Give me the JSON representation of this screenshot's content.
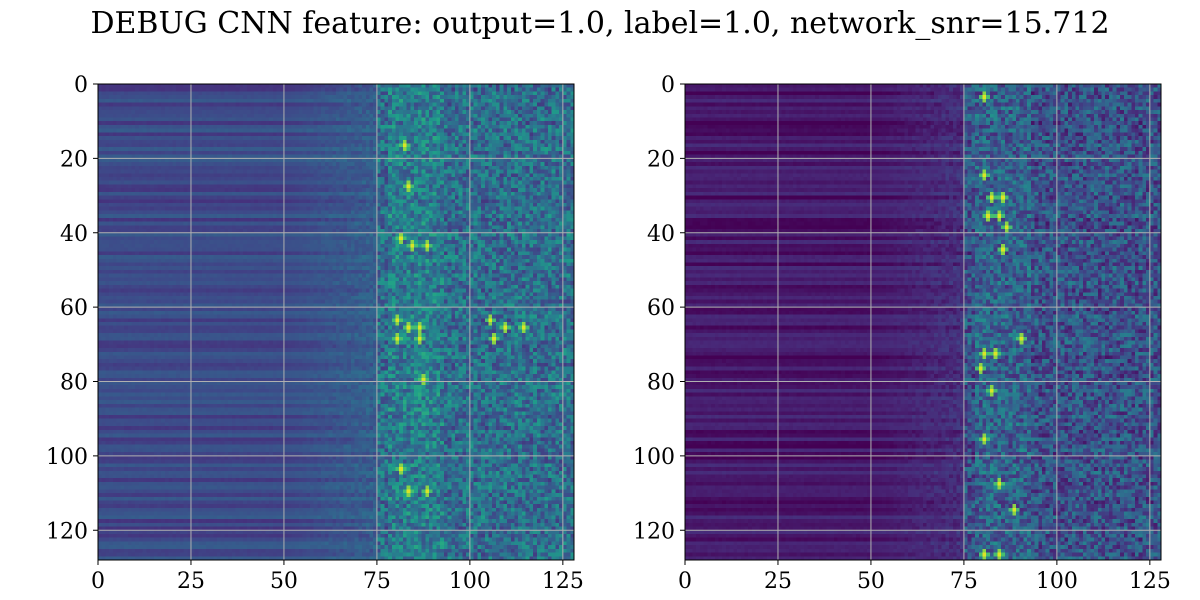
{
  "title": "DEBUG CNN feature: output=1.0, label=1.0, network_snr=15.712",
  "colormap": [
    "#440154",
    "#482878",
    "#3e4989",
    "#31688e",
    "#26828e",
    "#1f9e89",
    "#35b779",
    "#6ece58",
    "#b5de2b",
    "#fde725"
  ],
  "chart_data": [
    {
      "type": "heatmap",
      "panel": "left",
      "title": "",
      "xlabel": "",
      "ylabel": "",
      "xlim": [
        0,
        128
      ],
      "ylim": [
        128,
        0
      ],
      "xticks": [
        0,
        25,
        50,
        75,
        100,
        125
      ],
      "yticks": [
        0,
        20,
        40,
        60,
        80,
        100,
        120
      ],
      "grid": true,
      "rows": 128,
      "cols": 128,
      "colormap": "viridis",
      "description_profile": {
        "cols_0_50": "low, horizontally striped (blue-purple)",
        "cols_50_75": "gradual increase, noisy",
        "cols_75_128": "high-variance speckle with bright spots"
      },
      "bright_spots": [
        {
          "x": 82,
          "y": 16
        },
        {
          "x": 83,
          "y": 27
        },
        {
          "x": 81,
          "y": 41
        },
        {
          "x": 84,
          "y": 43
        },
        {
          "x": 88,
          "y": 43
        },
        {
          "x": 80,
          "y": 63
        },
        {
          "x": 83,
          "y": 65
        },
        {
          "x": 86,
          "y": 65
        },
        {
          "x": 105,
          "y": 63
        },
        {
          "x": 109,
          "y": 65
        },
        {
          "x": 114,
          "y": 65
        },
        {
          "x": 106,
          "y": 68
        },
        {
          "x": 80,
          "y": 68
        },
        {
          "x": 86,
          "y": 68
        },
        {
          "x": 87,
          "y": 79
        },
        {
          "x": 81,
          "y": 103
        },
        {
          "x": 83,
          "y": 109
        },
        {
          "x": 88,
          "y": 109
        }
      ]
    },
    {
      "type": "heatmap",
      "panel": "right",
      "title": "",
      "xlabel": "",
      "ylabel": "",
      "xlim": [
        0,
        128
      ],
      "ylim": [
        128,
        0
      ],
      "xticks": [
        0,
        25,
        50,
        75,
        100,
        125
      ],
      "yticks": [
        0,
        20,
        40,
        60,
        80,
        100,
        120
      ],
      "grid": true,
      "rows": 128,
      "cols": 128,
      "colormap": "viridis",
      "description_profile": {
        "cols_0_50": "very low, dark purple with faint stripes",
        "cols_50_75": "low, slightly increasing",
        "cols_75_128": "speckle with green/yellow spots near cols 78-90"
      },
      "bright_spots": [
        {
          "x": 80,
          "y": 3
        },
        {
          "x": 80,
          "y": 24
        },
        {
          "x": 82,
          "y": 30
        },
        {
          "x": 85,
          "y": 30
        },
        {
          "x": 81,
          "y": 35
        },
        {
          "x": 84,
          "y": 35
        },
        {
          "x": 86,
          "y": 38
        },
        {
          "x": 85,
          "y": 44
        },
        {
          "x": 90,
          "y": 68
        },
        {
          "x": 80,
          "y": 72
        },
        {
          "x": 83,
          "y": 72
        },
        {
          "x": 79,
          "y": 76
        },
        {
          "x": 82,
          "y": 82
        },
        {
          "x": 80,
          "y": 95
        },
        {
          "x": 84,
          "y": 107
        },
        {
          "x": 88,
          "y": 114
        },
        {
          "x": 80,
          "y": 126
        },
        {
          "x": 84,
          "y": 126
        }
      ]
    }
  ]
}
